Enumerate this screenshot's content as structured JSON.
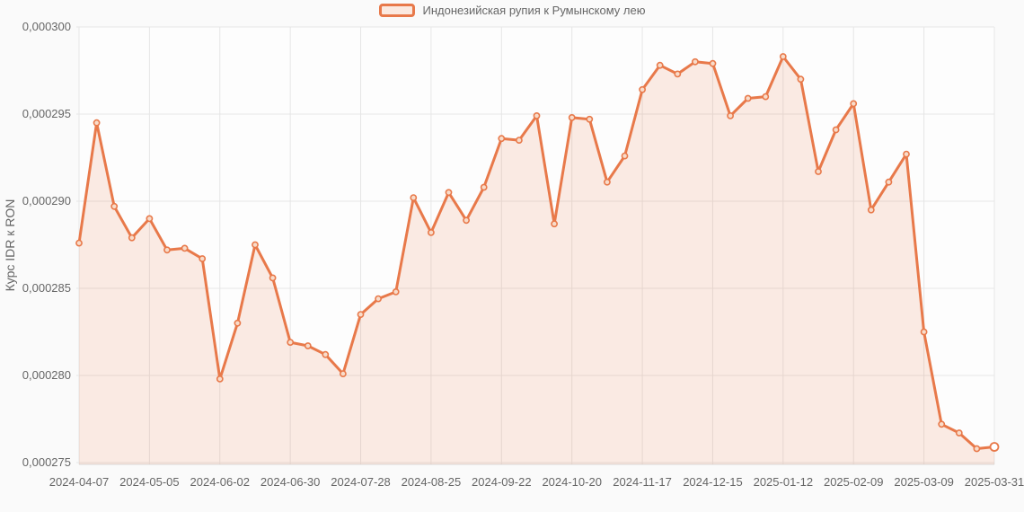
{
  "legend": {
    "label": "Индонезийская рупия к Румынскому лею"
  },
  "chart_data": {
    "type": "area",
    "title": "",
    "ylabel": "Курс IDR к RON",
    "xlabel": "",
    "grid": true,
    "legend_position": "top center",
    "series_name": "Индонезийская рупия к Румынскому лею",
    "x": [
      "2024-04-07",
      "2024-04-14",
      "2024-04-21",
      "2024-04-28",
      "2024-05-05",
      "2024-05-12",
      "2024-05-19",
      "2024-05-26",
      "2024-06-02",
      "2024-06-09",
      "2024-06-16",
      "2024-06-23",
      "2024-06-30",
      "2024-07-07",
      "2024-07-14",
      "2024-07-21",
      "2024-07-28",
      "2024-08-04",
      "2024-08-11",
      "2024-08-18",
      "2024-08-25",
      "2024-09-01",
      "2024-09-08",
      "2024-09-15",
      "2024-09-22",
      "2024-09-29",
      "2024-10-06",
      "2024-10-13",
      "2024-10-20",
      "2024-10-27",
      "2024-11-03",
      "2024-11-10",
      "2024-11-17",
      "2024-11-24",
      "2024-12-01",
      "2024-12-08",
      "2024-12-15",
      "2024-12-22",
      "2024-12-29",
      "2025-01-05",
      "2025-01-12",
      "2025-01-19",
      "2025-01-26",
      "2025-02-02",
      "2025-02-09",
      "2025-02-16",
      "2025-02-23",
      "2025-03-02",
      "2025-03-09",
      "2025-03-16",
      "2025-03-23",
      "2025-03-30",
      "2025-03-31"
    ],
    "values": [
      0.0002876,
      0.0002945,
      0.0002897,
      0.0002879,
      0.000289,
      0.0002872,
      0.0002873,
      0.0002867,
      0.0002798,
      0.000283,
      0.0002875,
      0.0002856,
      0.0002819,
      0.0002817,
      0.0002812,
      0.0002801,
      0.0002835,
      0.0002844,
      0.0002848,
      0.0002902,
      0.0002882,
      0.0002905,
      0.0002889,
      0.0002908,
      0.0002936,
      0.0002935,
      0.0002949,
      0.0002887,
      0.0002948,
      0.0002947,
      0.0002911,
      0.0002926,
      0.0002964,
      0.0002978,
      0.0002973,
      0.000298,
      0.0002979,
      0.0002949,
      0.0002959,
      0.000296,
      0.0002983,
      0.000297,
      0.0002917,
      0.0002941,
      0.0002956,
      0.0002895,
      0.0002911,
      0.0002927,
      0.0002825,
      0.0002772,
      0.0002767,
      0.0002758,
      0.0002759
    ],
    "x_tick_indices": [
      0,
      4,
      8,
      12,
      16,
      20,
      24,
      28,
      32,
      36,
      40,
      44,
      48,
      52
    ],
    "x_tick_labels": [
      "2024-04-07",
      "2024-05-05",
      "2024-06-02",
      "2024-06-30",
      "2024-07-28",
      "2024-08-25",
      "2024-09-22",
      "2024-10-20",
      "2024-11-17",
      "2024-12-15",
      "2025-01-12",
      "2025-02-09",
      "2025-03-09",
      "2025-03-31"
    ],
    "y_ticks": [
      0.000275,
      0.00028,
      0.000285,
      0.00029,
      0.000295,
      0.0003
    ],
    "y_tick_labels": [
      "0,000275",
      "0,000280",
      "0,000285",
      "0,000290",
      "0,000295",
      "0,000300"
    ],
    "ylim": [
      0.000275,
      0.0003
    ],
    "colors": {
      "line": "#e8794a",
      "fill": "rgba(232,121,74,0.14)",
      "marker_fill": "#f8dcca",
      "last_marker_fill": "#ffffff",
      "grid": "#e6e6e6",
      "axis_line": "#d9d9d9",
      "axis_text": "#666666",
      "background": "#fafafa",
      "plot_background": "#fdfdfd"
    }
  }
}
